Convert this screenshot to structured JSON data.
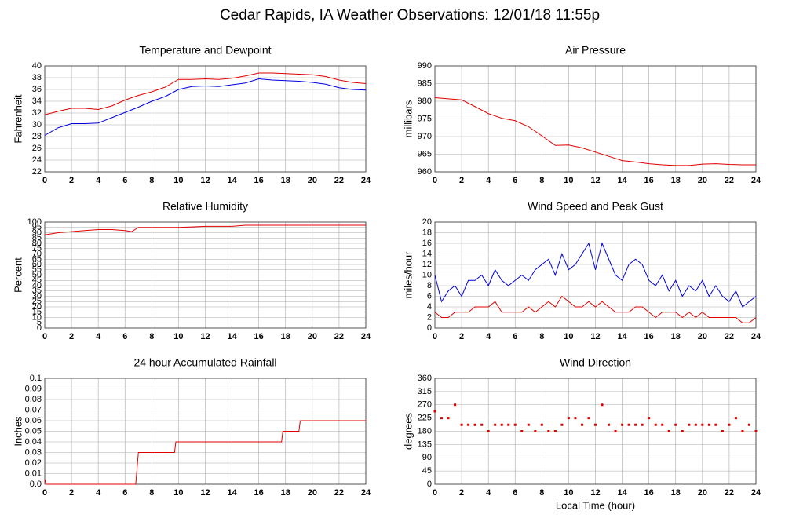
{
  "title": "Cedar Rapids, IA Weather Observations: 12/01/18 11:55p",
  "chart_data": [
    {
      "type": "line",
      "title": "Temperature and Dewpoint",
      "ylabel": "Fahrenheit",
      "x": [
        0,
        1,
        2,
        3,
        4,
        5,
        6,
        7,
        8,
        9,
        10,
        11,
        12,
        13,
        14,
        15,
        16,
        17,
        18,
        19,
        20,
        21,
        22,
        23,
        24
      ],
      "series": [
        {
          "color": "#e00000",
          "values": [
            31.7,
            32.3,
            32.8,
            32.8,
            32.6,
            33.2,
            34.2,
            35.0,
            35.6,
            36.4,
            37.7,
            37.7,
            37.8,
            37.7,
            37.9,
            38.3,
            38.8,
            38.8,
            38.7,
            38.6,
            38.5,
            38.2,
            37.6,
            37.2,
            37.0
          ]
        },
        {
          "color": "#0000e0",
          "values": [
            28.2,
            29.5,
            30.2,
            30.2,
            30.3,
            31.2,
            32.1,
            33.0,
            34.0,
            34.8,
            36.0,
            36.5,
            36.6,
            36.5,
            36.8,
            37.1,
            37.8,
            37.6,
            37.5,
            37.4,
            37.2,
            36.9,
            36.3,
            36.0,
            35.9
          ]
        }
      ],
      "xlim": [
        0,
        24
      ],
      "xticks": [
        0,
        2,
        4,
        6,
        8,
        10,
        12,
        14,
        16,
        18,
        20,
        22,
        24
      ],
      "ylim": [
        22,
        40
      ],
      "yticks": [
        22,
        24,
        26,
        28,
        30,
        32,
        34,
        36,
        38,
        40
      ],
      "grid": true
    },
    {
      "type": "line",
      "title": "Air Pressure",
      "ylabel": "millibars",
      "x": [
        0,
        1,
        2,
        3,
        4,
        5,
        6,
        7,
        8,
        9,
        10,
        11,
        12,
        13,
        14,
        15,
        16,
        17,
        18,
        19,
        20,
        21,
        22,
        23,
        24
      ],
      "series": [
        {
          "color": "#e00000",
          "values": [
            981,
            980.7,
            980.4,
            978.5,
            976.5,
            975.2,
            974.5,
            972.8,
            970.2,
            967.5,
            967.6,
            966.8,
            965.6,
            964.4,
            963.2,
            962.8,
            962.3,
            962.0,
            961.8,
            961.8,
            962.2,
            962.3,
            962.1,
            962.0,
            962.0
          ]
        }
      ],
      "xlim": [
        0,
        24
      ],
      "xticks": [
        0,
        2,
        4,
        6,
        8,
        10,
        12,
        14,
        16,
        18,
        20,
        22,
        24
      ],
      "ylim": [
        960,
        990
      ],
      "yticks": [
        960,
        965,
        970,
        975,
        980,
        985,
        990
      ],
      "grid": true
    },
    {
      "type": "line",
      "title": "Relative Humidity",
      "ylabel": "Percent",
      "x": [
        0,
        1,
        2,
        3,
        4,
        5,
        6,
        6.5,
        7,
        8,
        9,
        10,
        11,
        12,
        13,
        14,
        15,
        16,
        17,
        18,
        19,
        20,
        21,
        22,
        23,
        24
      ],
      "series": [
        {
          "color": "#e00000",
          "values": [
            88,
            90,
            91,
            92,
            93,
            93,
            92,
            91,
            95,
            95,
            95,
            95,
            95.5,
            96,
            96,
            96,
            97,
            97,
            97,
            97,
            97,
            97,
            97,
            97,
            97,
            97
          ]
        }
      ],
      "xlim": [
        0,
        24
      ],
      "xticks": [
        0,
        2,
        4,
        6,
        8,
        10,
        12,
        14,
        16,
        18,
        20,
        22,
        24
      ],
      "ylim": [
        0,
        100
      ],
      "yticks": [
        0,
        5,
        10,
        15,
        20,
        25,
        30,
        35,
        40,
        45,
        50,
        55,
        60,
        65,
        70,
        75,
        80,
        85,
        90,
        95,
        100
      ],
      "grid": true
    },
    {
      "type": "line",
      "title": "Wind Speed and Peak Gust",
      "ylabel": "miles/hour",
      "x": [
        0,
        0.5,
        1,
        1.5,
        2,
        2.5,
        3,
        3.5,
        4,
        4.5,
        5,
        5.5,
        6,
        6.5,
        7,
        7.5,
        8,
        8.5,
        9,
        9.5,
        10,
        10.5,
        11,
        11.5,
        12,
        12.5,
        13,
        13.5,
        14,
        14.5,
        15,
        15.5,
        16,
        16.5,
        17,
        17.5,
        18,
        18.5,
        19,
        19.5,
        20,
        20.5,
        21,
        21.5,
        22,
        22.5,
        23,
        23.5,
        24
      ],
      "series": [
        {
          "color": "#0000e0",
          "values": [
            10,
            5,
            7,
            8,
            6,
            9,
            9,
            10,
            8,
            11,
            9,
            8,
            9,
            10,
            9,
            11,
            12,
            13,
            10,
            14,
            11,
            12,
            14,
            16,
            11,
            16,
            13,
            10,
            9,
            12,
            13,
            12,
            9,
            8,
            10,
            7,
            9,
            6,
            8,
            7,
            9,
            6,
            8,
            6,
            5,
            7,
            4,
            5,
            6
          ]
        },
        {
          "color": "#e00000",
          "values": [
            3,
            2,
            2,
            3,
            3,
            3,
            4,
            4,
            4,
            5,
            3,
            3,
            3,
            3,
            4,
            3,
            4,
            5,
            4,
            6,
            5,
            4,
            4,
            5,
            4,
            5,
            4,
            3,
            3,
            3,
            4,
            4,
            3,
            2,
            3,
            3,
            3,
            2,
            3,
            2,
            3,
            2,
            2,
            2,
            2,
            2,
            1,
            1,
            2
          ]
        }
      ],
      "xlim": [
        0,
        24
      ],
      "xticks": [
        0,
        2,
        4,
        6,
        8,
        10,
        12,
        14,
        16,
        18,
        20,
        22,
        24
      ],
      "ylim": [
        0,
        20
      ],
      "yticks": [
        0,
        2,
        4,
        6,
        8,
        10,
        12,
        14,
        16,
        18,
        20
      ],
      "grid": true
    },
    {
      "type": "line",
      "title": "24 hour Accumulated Rainfall",
      "ylabel": "Inches",
      "x": [
        0,
        0.1,
        6.8,
        7,
        9.7,
        9.8,
        17.7,
        17.8,
        19,
        19.1,
        24
      ],
      "series": [
        {
          "color": "#e00000",
          "values": [
            0.005,
            0,
            0,
            0.03,
            0.03,
            0.04,
            0.04,
            0.05,
            0.05,
            0.06,
            0.06
          ]
        }
      ],
      "xlim": [
        0,
        24
      ],
      "xticks": [
        0,
        2,
        4,
        6,
        8,
        10,
        12,
        14,
        16,
        18,
        20,
        22,
        24
      ],
      "ylim": [
        0,
        0.1
      ],
      "yticks": [
        {
          "value": 0,
          "label": "0.0"
        },
        0.01,
        0.02,
        0.03,
        0.04,
        0.05,
        0.06,
        0.07,
        0.08,
        0.09,
        0.1
      ],
      "grid": true
    },
    {
      "type": "scatter",
      "title": "Wind Direction",
      "ylabel": "degrees",
      "xlabel": "Local Time (hour)",
      "x": [
        0,
        0.5,
        1,
        1.5,
        2,
        2.5,
        3,
        3.5,
        4,
        4.5,
        5,
        5.5,
        6,
        6.5,
        7,
        7.5,
        8,
        8.5,
        9,
        9.5,
        10,
        10.5,
        11,
        11.5,
        12,
        12.5,
        13,
        13.5,
        14,
        14.5,
        15,
        15.5,
        16,
        16.5,
        17,
        17.5,
        18,
        18.5,
        19,
        19.5,
        20,
        20.5,
        21,
        21.5,
        22,
        22.5,
        23,
        23.5,
        24
      ],
      "series": [
        {
          "color": "#e00000",
          "values": [
            248,
            225,
            225,
            270,
            202,
            202,
            202,
            202,
            180,
            202,
            202,
            202,
            202,
            180,
            202,
            180,
            202,
            180,
            180,
            202,
            225,
            225,
            202,
            225,
            202,
            270,
            202,
            180,
            202,
            202,
            202,
            202,
            225,
            202,
            202,
            180,
            202,
            180,
            202,
            202,
            202,
            202,
            202,
            180,
            202,
            225,
            180,
            202,
            180
          ]
        }
      ],
      "xlim": [
        0,
        24
      ],
      "xticks": [
        0,
        2,
        4,
        6,
        8,
        10,
        12,
        14,
        16,
        18,
        20,
        22,
        24
      ],
      "ylim": [
        0,
        360
      ],
      "yticks": [
        0,
        45,
        90,
        135,
        180,
        225,
        270,
        315,
        360
      ],
      "grid": true
    }
  ]
}
